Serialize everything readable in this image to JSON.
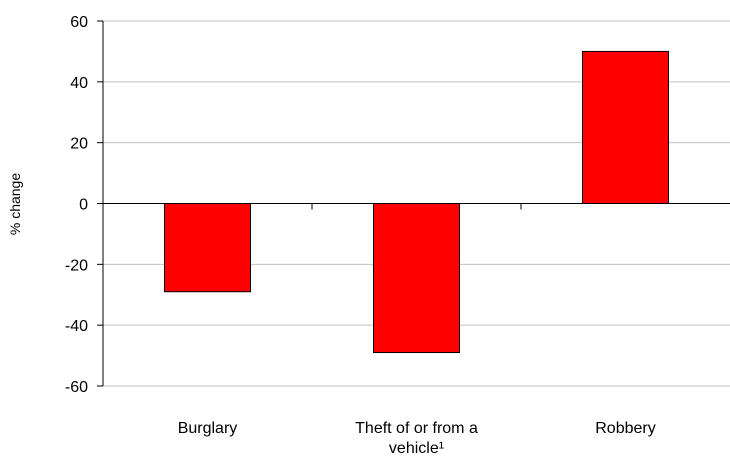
{
  "chart_data": {
    "type": "bar",
    "categories": [
      [
        "Burglary"
      ],
      [
        "Theft of or from a",
        "vehicle¹"
      ],
      [
        "Robbery"
      ]
    ],
    "values": [
      -29,
      -49,
      50
    ],
    "xlabel": "",
    "ylabel": "% change",
    "ylim": [
      -60,
      60
    ],
    "yticks": [
      60,
      40,
      20,
      0,
      -20,
      -40,
      -60
    ],
    "grid": true,
    "legend": "none",
    "bar_color": "#ff0000",
    "bar_edge_color": "#000000",
    "grid_color": "#c0c0c0"
  }
}
